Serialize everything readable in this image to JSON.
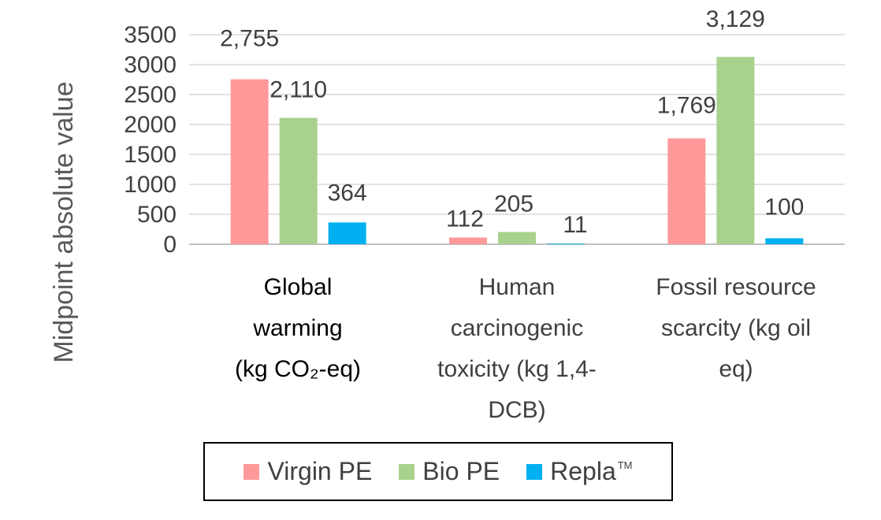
{
  "chart_data": {
    "type": "bar",
    "ylabel": "Midpoint absolute value",
    "ylim": [
      0,
      3500
    ],
    "yticks": [
      0,
      500,
      1000,
      1500,
      2000,
      2500,
      3000,
      3500
    ],
    "ytick_labels": [
      "0",
      "500",
      "1000",
      "1500",
      "2000",
      "2500",
      "3000",
      "3500"
    ],
    "grid": true,
    "legend_position": "bottom",
    "categories": [
      [
        "Global",
        "warming",
        "(kg CO₂-eq)"
      ],
      [
        "Human",
        "carcinogenic",
        "toxicity (kg 1,4-",
        "DCB)"
      ],
      [
        "Fossil resource",
        "scarcity (kg oil",
        "eq)"
      ]
    ],
    "series": [
      {
        "name": "Virgin PE",
        "color": "#ff9999",
        "values": [
          2755,
          112,
          1769
        ],
        "labels": [
          "2,755",
          "112",
          "1,769"
        ]
      },
      {
        "name": "Bio PE",
        "color": "#a9d18e",
        "values": [
          2110,
          205,
          3129
        ],
        "labels": [
          "2,110",
          "205",
          "3,129"
        ]
      },
      {
        "name": "Repla",
        "name_mark": "TM",
        "color": "#00b0f0",
        "values": [
          364,
          11,
          100
        ],
        "labels": [
          "364",
          "11",
          "100"
        ]
      }
    ]
  }
}
